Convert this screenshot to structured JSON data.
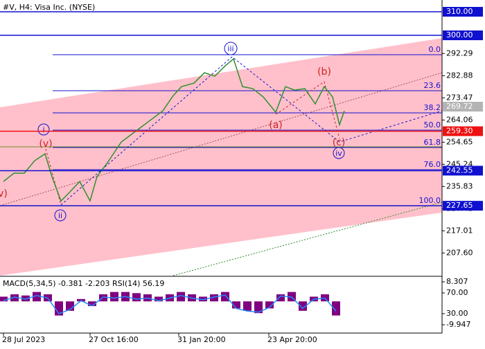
{
  "chart_data": [
    {
      "type": "line",
      "title": "#V, H4:  Visa Inc. (NYSE)",
      "x": [
        2.5,
        10,
        17.5,
        25,
        32.5,
        37.5,
        44,
        50,
        57.5,
        65,
        70,
        77.5,
        87.5,
        97.5,
        107.5,
        117.5,
        125,
        131,
        140,
        147.5,
        155,
        162.5,
        168.5,
        175,
        182.5,
        190,
        199,
        206,
        212.5,
        220,
        227.5,
        234,
        240,
        245,
        248.5
      ],
      "values": [
        237.94,
        241.47,
        241.47,
        246.76,
        249.71,
        240.0,
        229.71,
        233.24,
        237.94,
        229.71,
        240.0,
        245.88,
        254.71,
        259.12,
        263.53,
        267.94,
        274.41,
        278.24,
        279.71,
        284.12,
        282.65,
        287.06,
        290.0,
        278.24,
        277.35,
        273.82,
        267.35,
        278.24,
        276.76,
        277.35,
        270.88,
        278.24,
        273.82,
        262.06,
        267.94
      ],
      "color": "#2f8f2f",
      "xlim": [
        0,
        319
      ],
      "ylim": [
        198,
        315
      ],
      "yticks": [
        {
          "value": 207.6,
          "label": "207.60"
        },
        217.01,
        226.42,
        235.83,
        245.24,
        254.65,
        264.06,
        273.47,
        282.88,
        292.29
      ],
      "xticks": [
        {
          "value": 2.5,
          "label": "28 Jul 2023"
        },
        {
          "value": 65,
          "label": "27 Oct 16:00"
        },
        {
          "value": 129,
          "label": "31 Jan 20:00"
        },
        {
          "value": 194,
          "label": "23 Apr 20:00"
        }
      ],
      "levels": [
        {
          "value": 310,
          "label": "310.00",
          "color": "#1010d0"
        },
        {
          "value": 300,
          "label": "300.00",
          "color": "#1010d0"
        },
        {
          "value": 259.3,
          "label": "259.30",
          "color": "#ee1111"
        },
        {
          "value": 242.55,
          "label": "242.55",
          "color": "#1010d0"
        },
        {
          "value": 227.65,
          "label": "227.65",
          "color": "#1010d0"
        }
      ],
      "current": 269.72,
      "fib_labels": [
        "0.0",
        "23.6",
        "38.2",
        "50.0",
        "61.8",
        "76.0",
        "100.0"
      ],
      "wave_labels": [
        "(v)",
        "i",
        "ii",
        "iii",
        "(a)",
        "(b)",
        "(c)",
        "iv",
        "v)"
      ]
    },
    {
      "type": "macd",
      "title": "MACD(5,34,5) -0.381 -2.203 RSI(14) 56.19",
      "x": [
        2.5,
        10.5,
        18.5,
        26.5,
        34.5,
        42.5,
        50.5,
        58.5,
        66.5,
        74.5,
        82.5,
        90.5,
        98.5,
        106.5,
        114.5,
        122.5,
        130.5,
        138.5,
        146.5,
        154.5,
        162.5,
        170.5,
        178.5,
        186.5,
        194.5,
        202.5,
        210.5,
        218.5,
        226.5,
        234.5,
        242.5
      ],
      "histogram": {
        "values": [
          2,
          3,
          2.5,
          4,
          3,
          -6,
          -4,
          1,
          -2,
          3,
          4,
          4,
          3.5,
          3,
          2,
          3,
          4,
          3,
          2,
          3,
          4,
          -3,
          -4,
          -5,
          -3,
          3,
          4,
          -4,
          2,
          3,
          -6
        ],
        "color": "#800080"
      },
      "line": {
        "values": [
          55,
          62,
          58,
          65,
          60,
          30,
          38,
          55,
          45,
          62,
          60,
          63,
          58,
          60,
          55,
          60,
          65,
          60,
          57,
          62,
          66,
          40,
          35,
          33,
          42,
          64,
          62,
          40,
          58,
          60,
          35
        ],
        "color": "#1e90ff",
        "axis": "y2"
      },
      "xlim": [
        0,
        319
      ],
      "ylim": [
        -13.18,
        10.37
      ],
      "yticks": [
        -9.947,
        8.307
      ],
      "y2lim": [
        -6,
        100.7
      ],
      "y2ticks": [
        {
          "value": 30,
          "label": "30.00"
        },
        {
          "value": 70,
          "label": "70.00"
        }
      ]
    }
  ]
}
